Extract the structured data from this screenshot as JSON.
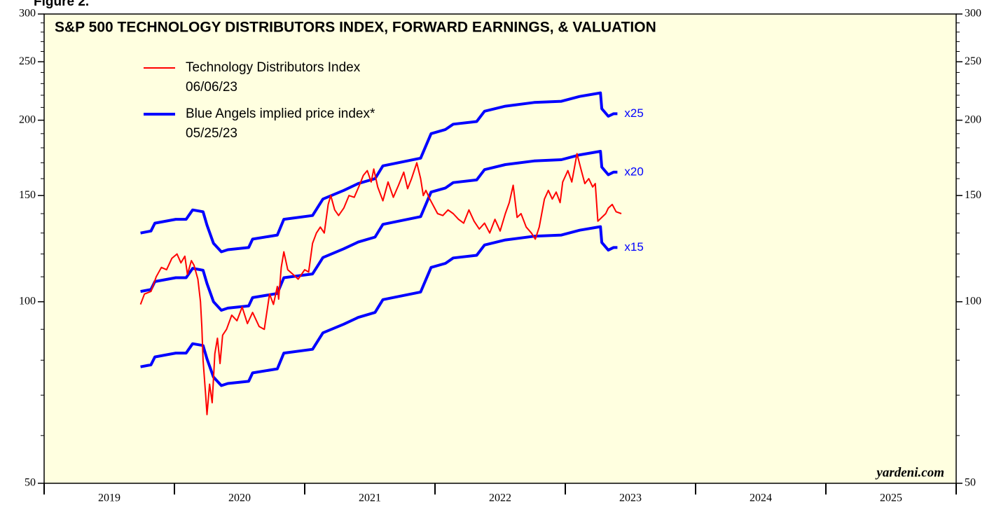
{
  "figure_label": "Figure 2.",
  "chart_data": {
    "type": "line",
    "title": "S&P 500 TECHNOLOGY DISTRIBUTORS INDEX, FORWARD EARNINGS, & VALUATION",
    "source": "yardeni.com",
    "log_scale": true,
    "ylim": [
      50,
      300
    ],
    "yticks": [
      50,
      100,
      150,
      200,
      250,
      300
    ],
    "yminor_ticks": [
      60,
      70,
      80,
      90,
      110,
      120,
      130,
      140,
      160,
      170,
      180,
      190,
      210,
      220,
      230,
      240,
      260,
      270,
      280,
      290
    ],
    "y2lim": [
      50,
      300
    ],
    "y2ticks": [
      50,
      100,
      150,
      200,
      250,
      300
    ],
    "xlim": [
      2019,
      2026
    ],
    "xticks": [
      2019,
      2020,
      2021,
      2022,
      2023,
      2024,
      2025
    ],
    "legend": [
      {
        "name": "Technology Distributors Index",
        "date": "06/06/23",
        "color": "#ff0000"
      },
      {
        "name": "Blue Angels implied price index*",
        "date": "05/25/23",
        "color": "#0000ff"
      }
    ],
    "series": [
      {
        "color": "#0000ff",
        "name": "x25",
        "x": [
          2019.74,
          2019.82,
          2019.85,
          2020.01,
          2020.09,
          2020.14,
          2020.22,
          2020.25,
          2020.3,
          2020.36,
          2020.41,
          2020.57,
          2020.6,
          2020.79,
          2020.84,
          2021.06,
          2021.14,
          2021.3,
          2021.41,
          2021.54,
          2021.6,
          2021.89,
          2021.97,
          2022.08,
          2022.14,
          2022.32,
          2022.38,
          2022.54,
          2022.76,
          2022.97,
          2023.11,
          2023.27,
          2023.28,
          2023.33,
          2023.37,
          2023.4
        ],
        "values": [
          130,
          131,
          135,
          137,
          137,
          142,
          141,
          134,
          125,
          121,
          122,
          123,
          127,
          129,
          137,
          139,
          148,
          153,
          157,
          160,
          168,
          173,
          190,
          193,
          197,
          199,
          207,
          211,
          214,
          215,
          219,
          222,
          209,
          203,
          205,
          205
        ]
      },
      {
        "color": "#0000ff",
        "name": "x20",
        "x": [
          2019.74,
          2019.82,
          2019.85,
          2020.01,
          2020.09,
          2020.14,
          2020.22,
          2020.25,
          2020.3,
          2020.36,
          2020.41,
          2020.57,
          2020.6,
          2020.79,
          2020.84,
          2021.06,
          2021.14,
          2021.3,
          2021.41,
          2021.54,
          2021.6,
          2021.89,
          2021.97,
          2022.08,
          2022.14,
          2022.32,
          2022.38,
          2022.54,
          2022.76,
          2022.97,
          2023.11,
          2023.27,
          2023.28,
          2023.33,
          2023.37,
          2023.4
        ],
        "values": [
          104,
          104.8,
          108,
          109.6,
          109.6,
          113.6,
          112.8,
          107.2,
          100,
          96.8,
          97.6,
          98.4,
          101.6,
          103.2,
          109.6,
          111.2,
          118.4,
          122.4,
          125.6,
          128,
          134.4,
          138.4,
          152,
          154.4,
          157.6,
          159.2,
          165.6,
          168.8,
          171.2,
          172,
          175.2,
          177.6,
          167.2,
          162.4,
          164,
          164
        ]
      },
      {
        "color": "#0000ff",
        "name": "x15",
        "x": [
          2019.74,
          2019.82,
          2019.85,
          2020.01,
          2020.09,
          2020.14,
          2020.22,
          2020.25,
          2020.3,
          2020.36,
          2020.41,
          2020.57,
          2020.6,
          2020.79,
          2020.84,
          2021.06,
          2021.14,
          2021.3,
          2021.41,
          2021.54,
          2021.6,
          2021.89,
          2021.97,
          2022.08,
          2022.14,
          2022.32,
          2022.38,
          2022.54,
          2022.76,
          2022.97,
          2023.11,
          2023.27,
          2023.28,
          2023.33,
          2023.37,
          2023.4
        ],
        "values": [
          78,
          78.6,
          81,
          82.2,
          82.2,
          85.2,
          84.6,
          80.4,
          75,
          72.6,
          73.2,
          73.8,
          76.2,
          77.4,
          82.2,
          83.4,
          88.8,
          91.8,
          94.2,
          96,
          100.8,
          103.8,
          114,
          115.8,
          118.2,
          119.4,
          124.2,
          126.6,
          128.4,
          129,
          131.4,
          133.2,
          125.4,
          121.8,
          123,
          123
        ]
      },
      {
        "color": "#ff0000",
        "x": [
          2019.74,
          2019.77,
          2019.82,
          2019.86,
          2019.9,
          2019.94,
          2019.98,
          2020.02,
          2020.05,
          2020.08,
          2020.1,
          2020.13,
          2020.15,
          2020.18,
          2020.2,
          2020.21,
          2020.22,
          2020.24,
          2020.25,
          2020.27,
          2020.29,
          2020.31,
          2020.33,
          2020.35,
          2020.37,
          2020.4,
          2020.44,
          2020.48,
          2020.52,
          2020.56,
          2020.6,
          2020.65,
          2020.69,
          2020.73,
          2020.76,
          2020.79,
          2020.8,
          2020.82,
          2020.84,
          2020.87,
          2020.91,
          2020.95,
          2021.0,
          2021.03,
          2021.06,
          2021.09,
          2021.12,
          2021.15,
          2021.18,
          2021.2,
          2021.23,
          2021.26,
          2021.3,
          2021.34,
          2021.38,
          2021.42,
          2021.45,
          2021.48,
          2021.51,
          2021.53,
          2021.56,
          2021.6,
          2021.64,
          2021.68,
          2021.72,
          2021.76,
          2021.79,
          2021.82,
          2021.86,
          2021.89,
          2021.91,
          2021.93,
          2021.96,
          2021.99,
          2022.02,
          2022.06,
          2022.1,
          2022.14,
          2022.18,
          2022.22,
          2022.26,
          2022.3,
          2022.34,
          2022.38,
          2022.42,
          2022.46,
          2022.5,
          2022.54,
          2022.57,
          2022.6,
          2022.63,
          2022.66,
          2022.7,
          2022.74,
          2022.77,
          2022.8,
          2022.84,
          2022.87,
          2022.9,
          2022.93,
          2022.96,
          2022.98,
          2023.02,
          2023.05,
          2023.09,
          2023.12,
          2023.15,
          2023.18,
          2023.21,
          2023.23,
          2023.25,
          2023.28,
          2023.31,
          2023.33,
          2023.36,
          2023.39,
          2023.43
        ],
        "values": [
          99,
          103,
          104,
          110,
          114,
          113,
          118,
          120,
          116,
          119,
          111,
          117,
          115,
          109,
          100,
          91,
          80,
          70,
          65,
          73,
          68,
          82,
          87,
          79,
          88,
          90,
          95,
          93,
          98,
          92,
          96,
          91,
          90,
          103,
          99,
          106,
          101,
          114,
          121,
          113,
          111,
          109,
          113,
          112,
          125,
          130,
          133,
          130,
          145,
          150,
          142,
          139,
          143,
          150,
          149,
          156,
          162,
          165,
          158,
          166,
          155,
          147,
          158,
          149,
          156,
          164,
          154,
          160,
          170,
          160,
          150,
          153,
          148,
          144,
          140,
          139,
          142,
          140,
          137,
          135,
          142,
          136,
          132,
          135,
          130,
          137,
          131,
          140,
          146,
          156,
          138,
          140,
          133,
          130,
          127,
          133,
          148,
          153,
          148,
          152,
          146,
          158,
          165,
          158,
          176,
          166,
          157,
          160,
          155,
          157,
          136,
          138,
          140,
          143,
          145,
          141,
          140
        ]
      }
    ]
  }
}
